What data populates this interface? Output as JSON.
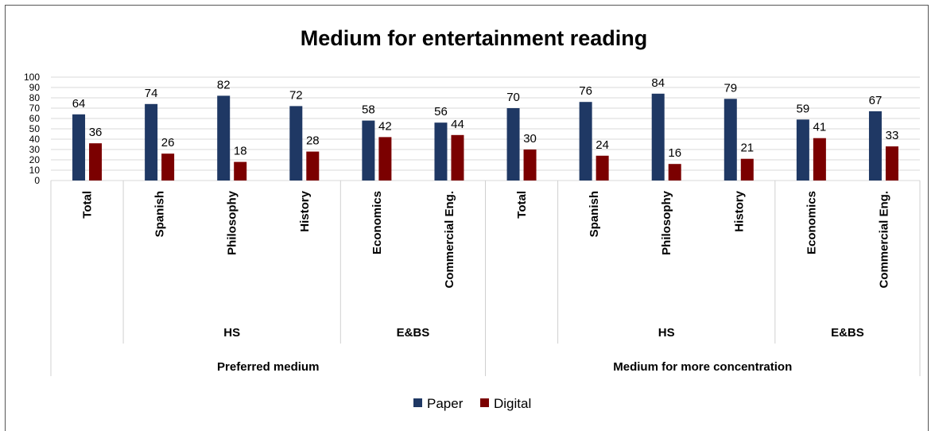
{
  "chart_data": {
    "type": "bar",
    "title": "Medium for entertainment reading",
    "ylim": [
      0,
      100
    ],
    "yticks": [
      0,
      10,
      20,
      30,
      40,
      50,
      60,
      70,
      80,
      90,
      100
    ],
    "grid": true,
    "legend_position": "bottom",
    "categories": [
      {
        "label": "Total",
        "group": "",
        "section": "Preferred medium"
      },
      {
        "label": "Spanish",
        "group": "HS",
        "section": "Preferred medium"
      },
      {
        "label": "Philosophy",
        "group": "HS",
        "section": "Preferred medium"
      },
      {
        "label": "History",
        "group": "HS",
        "section": "Preferred medium"
      },
      {
        "label": "Economics",
        "group": "E&BS",
        "section": "Preferred medium"
      },
      {
        "label": "Commercial Eng.",
        "group": "E&BS",
        "section": "Preferred medium"
      },
      {
        "label": "Total",
        "group": "",
        "section": "Medium for more concentration"
      },
      {
        "label": "Spanish",
        "group": "HS",
        "section": "Medium for more concentration"
      },
      {
        "label": "Philosophy",
        "group": "HS",
        "section": "Medium for more concentration"
      },
      {
        "label": "History",
        "group": "HS",
        "section": "Medium for more concentration"
      },
      {
        "label": "Economics",
        "group": "E&BS",
        "section": "Medium for more concentration"
      },
      {
        "label": "Commercial Eng.",
        "group": "E&BS",
        "section": "Medium for more concentration"
      }
    ],
    "series": [
      {
        "name": "Paper",
        "color": "#1f3864",
        "values": [
          64,
          74,
          82,
          72,
          58,
          56,
          70,
          76,
          84,
          79,
          59,
          67
        ]
      },
      {
        "name": "Digital",
        "color": "#7b0000",
        "values": [
          36,
          26,
          18,
          28,
          42,
          44,
          30,
          24,
          16,
          21,
          41,
          33
        ]
      }
    ]
  }
}
